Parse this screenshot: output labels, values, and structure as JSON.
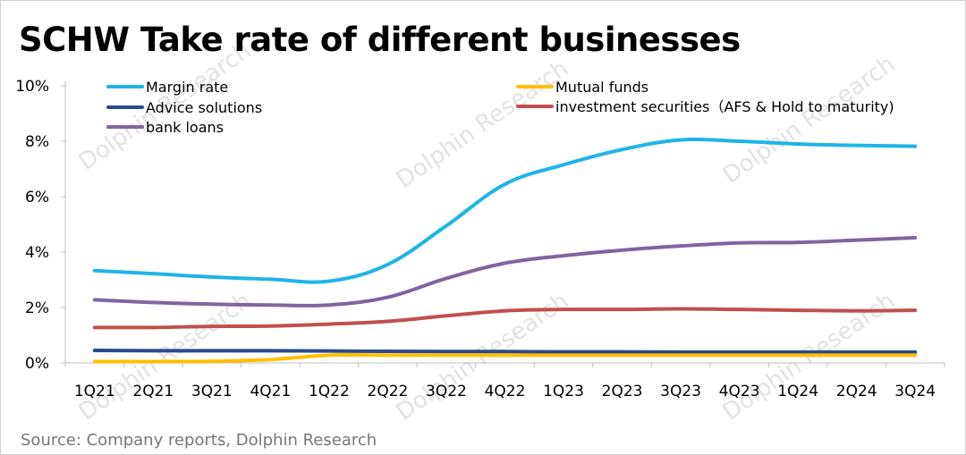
{
  "title": "SCHW Take rate of different businesses",
  "source": "Source: Company reports, Dolphin Research",
  "watermark": "Dolphin Research",
  "colors": {
    "margin_rate": "#1EB4E8",
    "mutual_funds": "#FFC000",
    "advice_solutions": "#2B4A8C",
    "investment_securities": "#C0504D",
    "bank_loans": "#8064A2"
  },
  "chart_data": {
    "type": "line",
    "title": "SCHW Take rate of different businesses",
    "xlabel": "",
    "ylabel": "",
    "categories": [
      "1Q21",
      "2Q21",
      "3Q21",
      "4Q21",
      "1Q22",
      "2Q22",
      "3Q22",
      "4Q22",
      "1Q23",
      "2Q23",
      "3Q23",
      "4Q23",
      "1Q24",
      "2Q24",
      "3Q24"
    ],
    "ylim": [
      0,
      10
    ],
    "yticks": [
      "0%",
      "2%",
      "4%",
      "6%",
      "8%",
      "10%"
    ],
    "grid": false,
    "legend_position": "top",
    "series": [
      {
        "name": "Margin rate",
        "key": "margin_rate",
        "values": [
          3.33,
          3.22,
          3.1,
          3.02,
          2.95,
          3.55,
          4.95,
          6.45,
          7.15,
          7.7,
          8.05,
          8.0,
          7.9,
          7.85,
          7.82
        ]
      },
      {
        "name": "Mutual funds",
        "key": "mutual_funds",
        "values": [
          0.05,
          0.05,
          0.06,
          0.12,
          0.28,
          0.28,
          0.28,
          0.28,
          0.28,
          0.28,
          0.28,
          0.28,
          0.28,
          0.28,
          0.28
        ]
      },
      {
        "name": "Advice solutions",
        "key": "advice_solutions",
        "values": [
          0.45,
          0.44,
          0.44,
          0.44,
          0.43,
          0.42,
          0.41,
          0.41,
          0.4,
          0.4,
          0.39,
          0.39,
          0.39,
          0.39,
          0.39
        ]
      },
      {
        "name": "investment securities（AFS & Hold to maturity)",
        "key": "investment_securities",
        "values": [
          1.28,
          1.28,
          1.32,
          1.33,
          1.4,
          1.5,
          1.7,
          1.88,
          1.93,
          1.93,
          1.95,
          1.93,
          1.9,
          1.88,
          1.9
        ]
      },
      {
        "name": "bank loans",
        "key": "bank_loans",
        "values": [
          2.28,
          2.18,
          2.12,
          2.09,
          2.09,
          2.37,
          3.05,
          3.6,
          3.87,
          4.07,
          4.22,
          4.33,
          4.35,
          4.43,
          4.52
        ]
      }
    ]
  }
}
